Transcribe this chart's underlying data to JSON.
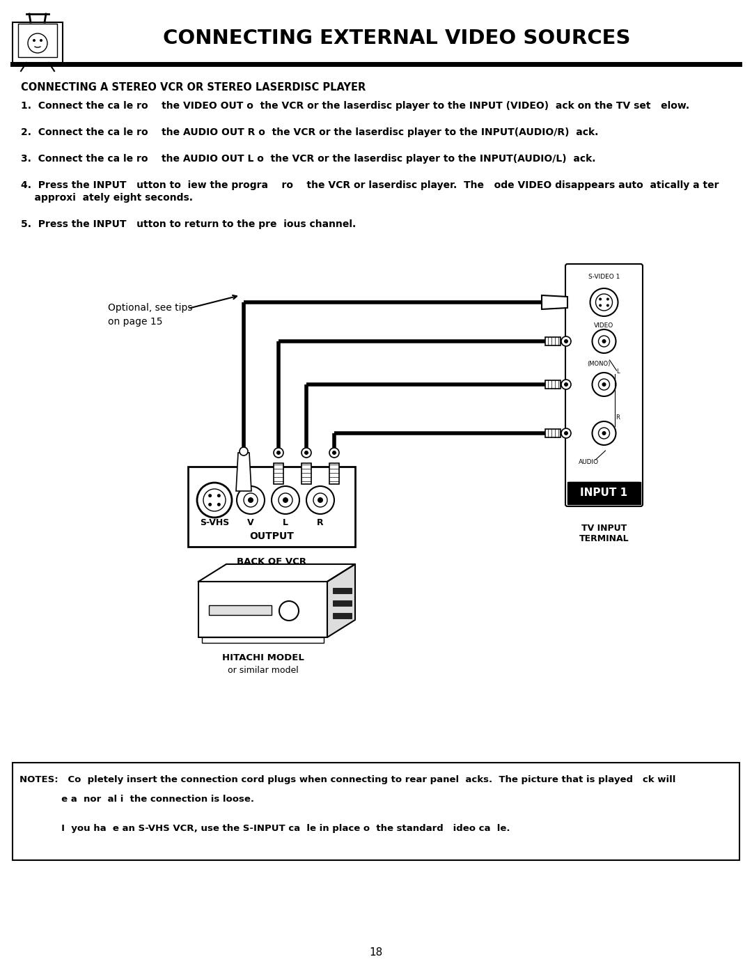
{
  "title": "CONNECTING EXTERNAL VIDEO SOURCES",
  "page_number": "18",
  "bg_color": "#ffffff",
  "text_color": "#000000",
  "header_subtitle": "CONNECTING A STEREO VCR OR STEREO LASERDISC PLAYER",
  "step1": "1.  Connect the ca le ro    the VIDEO OUT o  the VCR or the laserdisc player to the INPUT (VIDEO)  ack on the TV set   elow.",
  "step2": "2.  Connect the ca le ro    the AUDIO OUT R o  the VCR or the laserdisc player to the INPUT(AUDIO/R)  ack.",
  "step3": "3.  Connect the ca le ro    the AUDIO OUT L o  the VCR or the laserdisc player to the INPUT(AUDIO/L)  ack.",
  "step4a": "4.  Press the INPUT   utton to  iew the progra    ro    the VCR or laserdisc player.  The   ode VIDEO disappears auto  atically a ter",
  "step4b": "    approxi  ately eight seconds.",
  "step5": "5.  Press the INPUT   utton to return to the pre  ious channel.",
  "optional_text1": "Optional, see tips",
  "optional_text2": "on page 15",
  "svideo1_lbl": "S-VIDEO 1",
  "video_lbl": "VIDEO",
  "mono_lbl": "(MONO)",
  "l_lbl": "L",
  "r_lbl": "R",
  "audio_lbl": "AUDIO",
  "input1_lbl": "INPUT 1",
  "tv_terminal_lbl": "TV INPUT\nTERMINAL",
  "svhs_lbl": "S-VHS",
  "v_lbl": "V",
  "vcr_l_lbl": "L",
  "vcr_r_lbl": "R",
  "output_lbl": "OUTPUT",
  "back_vcr_lbl": "BACK OF VCR",
  "hitachi_lbl1": "HITACHI MODEL",
  "hitachi_lbl2": "or similar model",
  "notes_line1": "NOTES:   Co  pletely insert the connection cord plugs when connecting to rear panel  acks.  The picture that is played   ck will",
  "notes_line2": "             e a  nor  al i  the connection is loose.",
  "notes_line3": "             I  you ha  e an S-VHS VCR, use the S-INPUT ca  le in place o  the standard   ideo ca  le."
}
